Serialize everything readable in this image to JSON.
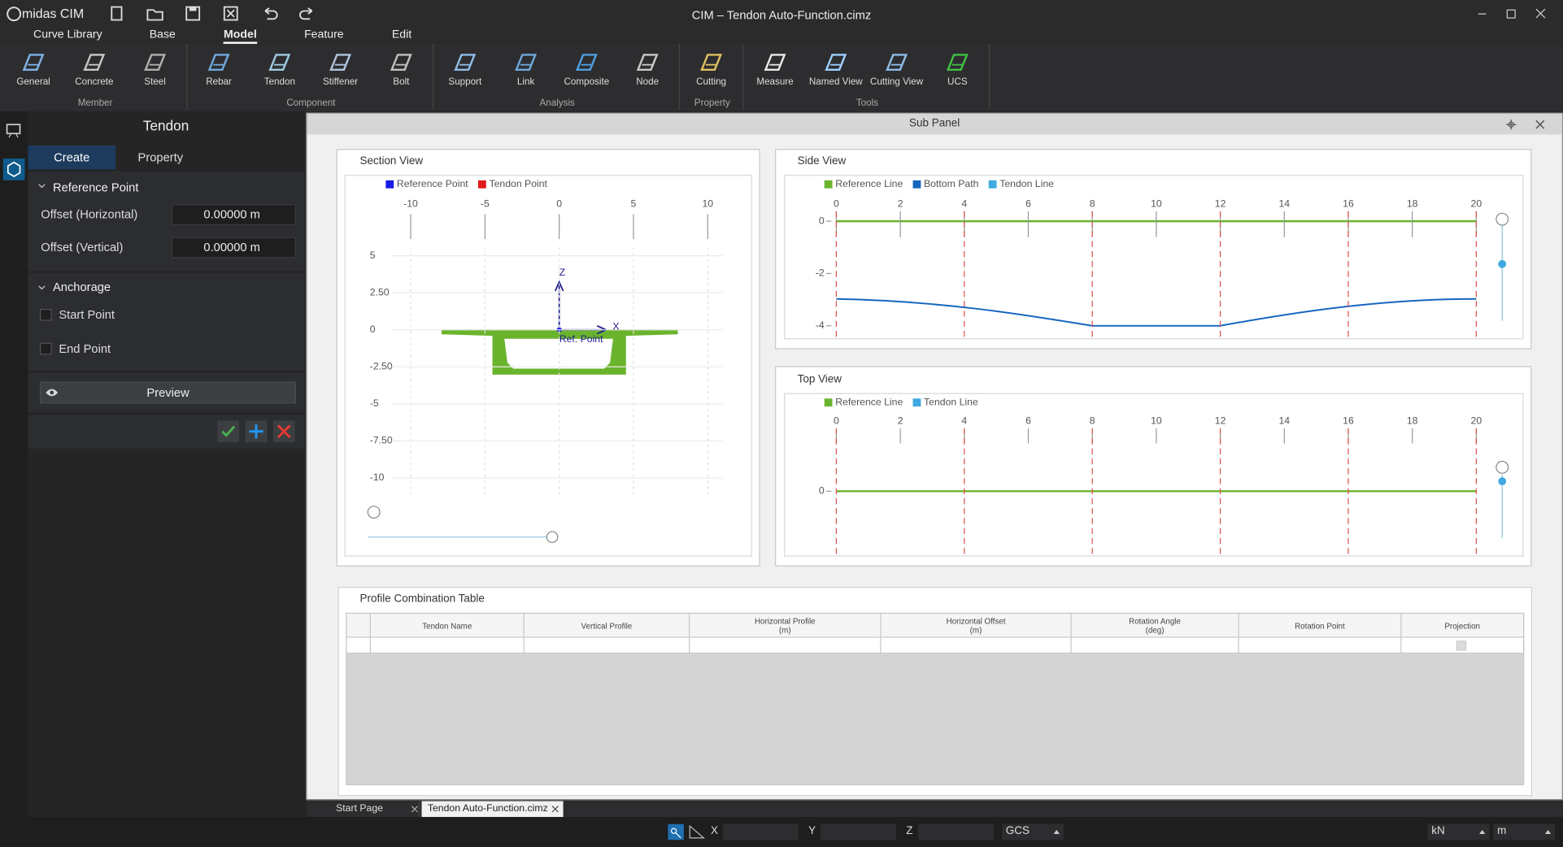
{
  "titlebar": {
    "app": "midas CIM",
    "title": "CIM – Tendon Auto-Function.cimz"
  },
  "menu": [
    "Curve Library",
    "Base",
    "Model",
    "Feature",
    "Edit"
  ],
  "ribbon": [
    {
      "group": "Member",
      "tools": [
        "General",
        "Concrete",
        "Steel"
      ]
    },
    {
      "group": "Component",
      "tools": [
        "Rebar",
        "Tendon",
        "Stiffener",
        "Bolt"
      ]
    },
    {
      "group": "Analysis",
      "tools": [
        "Support",
        "Link",
        "Composite",
        "Node"
      ]
    },
    {
      "group": "Property",
      "tools": [
        "Cutting"
      ]
    },
    {
      "group": "Tools",
      "tools": [
        "Measure",
        "Named View",
        "Cutting View",
        "UCS"
      ]
    }
  ],
  "left_panel": {
    "title": "Tendon",
    "tabs": [
      "Create",
      "Property"
    ],
    "reference_point": {
      "heading": "Reference Point",
      "fields": [
        {
          "label": "Offset (Horizontal)",
          "value": "0.00000 m"
        },
        {
          "label": "Offset (Vertical)",
          "value": "0.00000 m"
        }
      ]
    },
    "anchorage": {
      "heading": "Anchorage",
      "options": [
        "Start Point",
        "End Point"
      ]
    },
    "preview": "Preview"
  },
  "sub_panel": {
    "title": "Sub Panel",
    "section_view": {
      "title": "Section View",
      "legend": [
        {
          "name": "Reference Point",
          "color": "#1a1ae6"
        },
        {
          "name": "Tendon Point",
          "color": "#e01a1a"
        }
      ],
      "xticks": [
        -10,
        -5,
        0,
        5,
        10
      ],
      "yticks": [
        5,
        {
          "value": 2.5,
          "label": "2.50"
        },
        0,
        {
          "value": -2.5,
          "label": "-2.50"
        },
        -5,
        {
          "value": -7.5,
          "label": "-7.50"
        },
        -10
      ],
      "z_label": "Z",
      "x_label": "X",
      "origin_label": "Ref. Point"
    },
    "side_view": {
      "title": "Side View",
      "legend": [
        {
          "name": "Reference Line",
          "color": "#6ab42d"
        },
        {
          "name": "Bottom Path",
          "color": "#1565c0"
        },
        {
          "name": "Tendon Line",
          "color": "#3fa9e0"
        }
      ],
      "xticks": [
        0,
        2,
        4,
        6,
        8,
        10,
        12,
        14,
        16,
        18,
        20
      ],
      "yticks": [
        0,
        -2,
        -4
      ]
    },
    "top_view": {
      "title": "Top View",
      "legend": [
        {
          "name": "Reference Line",
          "color": "#6ab42d"
        },
        {
          "name": "Tendon Line",
          "color": "#3fa9e0"
        }
      ],
      "xticks": [
        0,
        2,
        4,
        6,
        8,
        10,
        12,
        14,
        16,
        18,
        20
      ],
      "yticks": [
        0
      ]
    },
    "table": {
      "title": "Profile Combination Table",
      "columns": [
        "Tendon Name",
        "Vertical Profile",
        "Horizontal Profile\n(m)",
        "Horizontal Offset\n(m)",
        "Rotation Angle\n(deg)",
        "Rotation Point",
        "Projection"
      ]
    }
  },
  "tabs": [
    "Start Page",
    "Tendon Auto-Function.cimz"
  ],
  "status_bar": {
    "coords": [
      "X",
      "Y",
      "Z"
    ],
    "system": "GCS",
    "force_unit": "kN",
    "length_unit": "m"
  }
}
